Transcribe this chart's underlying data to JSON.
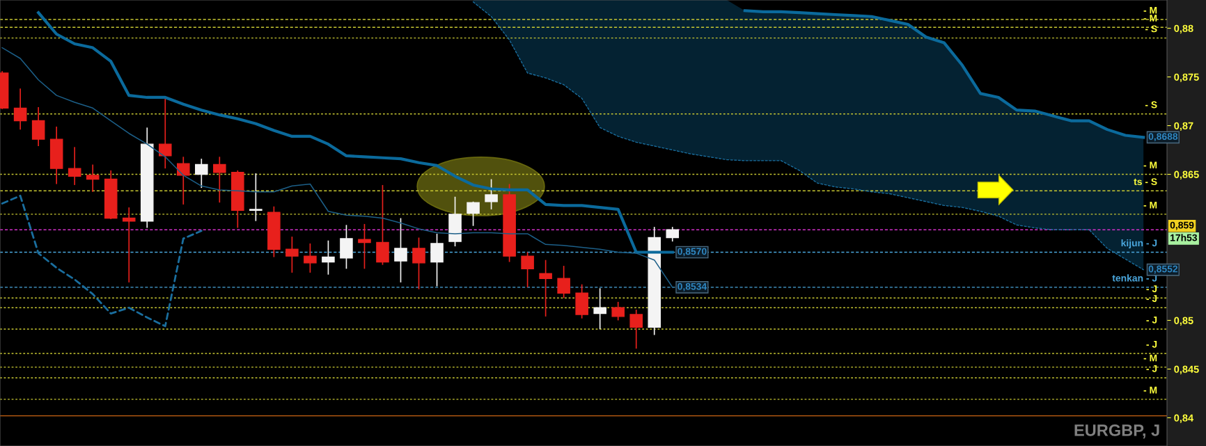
{
  "chart_data": {
    "type": "candlestick",
    "title": "EURGBP, J",
    "categories": [
      null,
      null,
      null,
      null,
      null,
      null,
      null,
      null,
      null,
      null,
      null,
      null,
      null,
      null,
      null,
      null,
      null,
      null,
      null,
      null,
      null,
      null,
      null,
      null,
      null,
      null,
      null,
      null,
      null,
      null,
      null,
      null,
      null,
      null,
      null,
      null,
      null,
      null,
      null,
      null,
      null,
      null,
      null,
      null,
      null,
      null,
      null,
      null,
      null,
      null,
      null,
      null,
      null,
      null,
      null,
      null,
      null,
      null,
      null,
      null,
      null,
      null,
      null,
      null
    ],
    "ylim": [
      0.8371,
      0.8829
    ],
    "yticks": [
      {
        "value": 0.84,
        "label": "0,84"
      },
      {
        "value": 0.845,
        "label": "0,845"
      },
      {
        "value": 0.85,
        "label": "0,85"
      },
      {
        "value": 0.865,
        "label": "0,865"
      },
      {
        "value": 0.87,
        "label": "0,87"
      },
      {
        "value": 0.875,
        "label": "0,875"
      },
      {
        "value": 0.88,
        "label": "0,88"
      }
    ],
    "tick_labels": "y",
    "grid": false,
    "legend": false,
    "series": [
      {
        "ohlc": [
          [
            0.8754,
            0.8756,
            0.8717,
            0.8718
          ],
          [
            0.8718,
            0.8738,
            0.8696,
            0.8705
          ],
          [
            0.8705,
            0.8719,
            0.8679,
            0.8686
          ],
          [
            0.8686,
            0.8699,
            0.864,
            0.8656
          ],
          [
            0.8656,
            0.8678,
            0.8639,
            0.8648
          ],
          [
            0.8649,
            0.866,
            0.8632,
            0.8645
          ],
          [
            0.8645,
            0.8654,
            0.8604,
            0.8605
          ],
          [
            0.8605,
            0.8616,
            0.8539,
            0.8602
          ],
          [
            0.8602,
            0.8698,
            0.8595,
            0.8681
          ],
          [
            0.8681,
            0.8729,
            0.8656,
            0.8669
          ],
          [
            0.8661,
            0.8668,
            0.8619,
            0.8649
          ],
          [
            0.865,
            0.8666,
            0.8636,
            0.866
          ],
          [
            0.866,
            0.8668,
            0.8621,
            0.8652
          ],
          [
            0.8652,
            0.8654,
            0.8595,
            0.8613
          ],
          [
            0.8613,
            0.8651,
            0.8602,
            0.8614
          ],
          [
            0.8611,
            0.8617,
            0.8565,
            0.8573
          ],
          [
            0.8573,
            0.8586,
            0.8549,
            0.8566
          ],
          [
            0.8566,
            0.8579,
            0.8549,
            0.8559
          ],
          [
            0.856,
            0.8582,
            0.8547,
            0.8565
          ],
          [
            0.8564,
            0.8598,
            0.8553,
            0.8584
          ],
          [
            0.8583,
            0.8599,
            0.8553,
            0.858
          ],
          [
            0.858,
            0.8639,
            0.8557,
            0.856
          ],
          [
            0.8561,
            0.8605,
            0.8539,
            0.8574
          ],
          [
            0.8574,
            0.8585,
            0.8532,
            0.8559
          ],
          [
            0.856,
            0.8589,
            0.8535,
            0.8579
          ],
          [
            0.8581,
            0.8627,
            0.8576,
            0.8609
          ],
          [
            0.861,
            0.8622,
            0.8597,
            0.8621
          ],
          [
            0.8622,
            0.8645,
            0.8614,
            0.8629
          ],
          [
            0.8629,
            0.864,
            0.856,
            0.8566
          ],
          [
            0.8566,
            0.857,
            0.8534,
            0.8553
          ],
          [
            0.8548,
            0.8562,
            0.8504,
            0.8543
          ],
          [
            0.8543,
            0.8556,
            0.8523,
            0.8528
          ],
          [
            0.8528,
            0.8537,
            0.8502,
            0.8506
          ],
          [
            0.8507,
            0.8533,
            0.8491,
            0.8513
          ],
          [
            0.8513,
            0.8519,
            0.85,
            0.8504
          ],
          [
            0.8506,
            0.8511,
            0.8471,
            0.8493
          ],
          [
            0.8493,
            0.8596,
            0.8485,
            0.8585
          ],
          [
            0.8585,
            0.8596,
            0.8581,
            0.8593
          ],
          null,
          null,
          null,
          null,
          null,
          null,
          null,
          null,
          null,
          null,
          null,
          null,
          null,
          null,
          null,
          null,
          null,
          null,
          null,
          null,
          null,
          null,
          null,
          null,
          null,
          null
        ],
        "colors": [
          "#e8201c",
          "#e8201c",
          "#e8201c",
          "#e8201c",
          "#e8201c",
          "#e8201c",
          "#e8201c",
          "#e8201c",
          "#f4f4f4",
          "#e8201c",
          "#e8201c",
          "#f4f4f4",
          "#e8201c",
          "#e8201c",
          "#f4f4f4",
          "#e8201c",
          "#e8201c",
          "#e8201c",
          "#f4f4f4",
          "#f4f4f4",
          "#e8201c",
          "#e8201c",
          "#f4f4f4",
          "#e8201c",
          "#f4f4f4",
          "#f4f4f4",
          "#f4f4f4",
          "#f4f4f4",
          "#e8201c",
          "#e8201c",
          "#e8201c",
          "#e8201c",
          "#e8201c",
          "#f4f4f4",
          "#e8201c",
          "#e8201c",
          "#f4f4f4",
          "#f4f4f4",
          null,
          null,
          null,
          null,
          null,
          null,
          null,
          null,
          null,
          null,
          null,
          null,
          null,
          null,
          null,
          null,
          null,
          null,
          null,
          null,
          null,
          null,
          null,
          null,
          null,
          null
        ],
        "value_labels": [
          null,
          null,
          null,
          null,
          null,
          null,
          null,
          null,
          null,
          null,
          null,
          null,
          null,
          null,
          null,
          null,
          null,
          null,
          null,
          null,
          null,
          null,
          null,
          null,
          null,
          null,
          null,
          null,
          null,
          null,
          null,
          null,
          null,
          null,
          null,
          null,
          null,
          "0,859",
          null,
          null,
          null,
          null,
          null,
          null,
          null,
          null,
          null,
          null,
          null,
          null,
          null,
          null,
          null,
          null,
          null,
          null,
          null,
          null,
          null,
          null,
          null,
          null,
          null,
          null
        ]
      },
      {
        "type": "line",
        "color": "#0b6a9c",
        "line_style": "solid",
        "values": [
          null,
          null,
          0.8816,
          0.8794,
          0.8784,
          0.878,
          0.8766,
          0.8731,
          0.8729,
          0.8729,
          0.8722,
          0.8716,
          0.8711,
          0.8707,
          0.8702,
          0.8695,
          0.8689,
          0.8689,
          0.8681,
          0.8669,
          0.8668,
          0.8667,
          0.8666,
          0.8662,
          0.8659,
          0.8648,
          0.8639,
          0.8635,
          0.8634,
          0.8634,
          0.8619,
          0.8618,
          0.8618,
          0.8616,
          0.8614,
          0.857,
          0.857,
          0.857,
          null,
          null,
          null,
          null,
          null,
          null,
          null,
          null,
          null,
          null,
          null,
          null,
          null,
          null,
          null,
          null,
          null,
          null,
          null,
          null,
          null,
          null,
          null,
          null,
          null,
          null
        ],
        "value_labels": [
          null,
          null,
          null,
          null,
          null,
          null,
          null,
          null,
          null,
          null,
          null,
          null,
          null,
          null,
          null,
          null,
          null,
          null,
          null,
          null,
          null,
          null,
          null,
          null,
          null,
          null,
          null,
          null,
          null,
          null,
          null,
          null,
          null,
          null,
          null,
          null,
          null,
          "0,8570",
          null,
          null,
          null,
          null,
          null,
          null,
          null,
          null,
          null,
          null,
          null,
          null,
          null,
          null,
          null,
          null,
          null,
          null,
          null,
          null,
          null,
          null,
          null,
          null,
          null,
          null
        ]
      },
      {
        "type": "line",
        "color": "#1c5f88",
        "line_style": "solid",
        "values": [
          0.878,
          0.8769,
          0.8747,
          0.8731,
          0.8724,
          0.8718,
          0.8705,
          0.8692,
          0.8681,
          0.8668,
          0.8649,
          0.8638,
          0.8634,
          0.8633,
          0.8632,
          0.8632,
          0.8638,
          0.864,
          0.8612,
          0.8608,
          0.8607,
          0.8605,
          0.86,
          0.8594,
          0.859,
          0.8589,
          0.859,
          0.859,
          0.8589,
          0.8589,
          0.8578,
          0.8577,
          0.8575,
          0.8573,
          0.857,
          0.8569,
          0.8562,
          0.8534,
          null,
          null,
          null,
          null,
          null,
          null,
          null,
          null,
          null,
          null,
          null,
          null,
          null,
          null,
          null,
          null,
          null,
          null,
          null,
          null,
          null,
          null,
          null,
          null,
          null,
          null
        ],
        "value_labels": [
          null,
          null,
          null,
          null,
          null,
          null,
          null,
          null,
          null,
          null,
          null,
          null,
          null,
          null,
          null,
          null,
          null,
          null,
          null,
          null,
          null,
          null,
          null,
          null,
          null,
          null,
          null,
          null,
          null,
          null,
          null,
          null,
          null,
          null,
          null,
          null,
          null,
          "0,8534",
          null,
          null,
          null,
          null,
          null,
          null,
          null,
          null,
          null,
          null,
          null,
          null,
          null,
          null,
          null,
          null,
          null,
          null,
          null,
          null,
          null,
          null,
          null,
          null,
          null,
          null
        ]
      },
      {
        "type": "line",
        "color": "#1a6e9e",
        "line_style": "dashed",
        "values": [
          0.862,
          0.8628,
          0.8569,
          0.8554,
          0.8542,
          0.8527,
          0.8507,
          0.8513,
          0.8503,
          0.8494,
          0.8584,
          0.8592,
          null,
          null,
          null,
          null,
          null,
          null,
          null,
          null,
          null,
          null,
          null,
          null,
          null,
          null,
          null,
          null,
          null,
          null,
          null,
          null,
          null,
          null,
          null,
          null,
          null,
          null,
          null,
          null,
          null,
          null,
          null,
          null,
          null,
          null,
          null,
          null,
          null,
          null,
          null,
          null,
          null,
          null,
          null,
          null,
          null,
          null,
          null,
          null,
          null,
          null,
          null,
          null
        ]
      },
      {
        "type": "line",
        "color": "#1a6e9e",
        "line_style": "dotted",
        "values": [
          null,
          null,
          null,
          null,
          null,
          null,
          null,
          null,
          null,
          null,
          null,
          null,
          null,
          null,
          null,
          null,
          null,
          null,
          null,
          null,
          null,
          null,
          null,
          null,
          null,
          null,
          0.8827,
          0.8812,
          0.8788,
          0.8754,
          0.8749,
          0.8742,
          0.8728,
          0.8698,
          0.8689,
          0.8683,
          0.8679,
          0.8675,
          0.8671,
          0.8668,
          0.8665,
          0.8664,
          0.8664,
          0.8664,
          0.8654,
          0.8641,
          0.8637,
          0.8635,
          0.8632,
          0.863,
          0.8626,
          0.8622,
          0.8618,
          0.8616,
          0.8612,
          0.8607,
          0.8598,
          0.8595,
          0.8593,
          0.8593,
          0.8593,
          0.8574,
          0.8563,
          0.8552
        ],
        "value_labels": [
          null,
          null,
          null,
          null,
          null,
          null,
          null,
          null,
          null,
          null,
          null,
          null,
          null,
          null,
          null,
          null,
          null,
          null,
          null,
          null,
          null,
          null,
          null,
          null,
          null,
          null,
          null,
          null,
          null,
          null,
          null,
          null,
          null,
          null,
          null,
          null,
          null,
          null,
          null,
          null,
          null,
          null,
          null,
          null,
          null,
          null,
          null,
          null,
          null,
          null,
          null,
          null,
          null,
          null,
          null,
          null,
          null,
          null,
          null,
          null,
          null,
          null,
          null,
          "0,8552"
        ]
      },
      {
        "type": "line",
        "color": "#0b6a9c",
        "line_style": "solid",
        "values": [
          null,
          null,
          null,
          null,
          null,
          null,
          null,
          null,
          null,
          null,
          null,
          null,
          null,
          null,
          null,
          null,
          null,
          null,
          null,
          null,
          null,
          null,
          null,
          null,
          null,
          null,
          null,
          null,
          null,
          null,
          null,
          null,
          null,
          null,
          null,
          null,
          null,
          null,
          null,
          null,
          null,
          0.8818,
          0.8817,
          0.8817,
          0.8816,
          0.8815,
          0.8814,
          0.8813,
          0.8812,
          0.8808,
          0.8804,
          0.8791,
          0.8785,
          0.8762,
          0.8733,
          0.8729,
          0.8716,
          0.8715,
          0.871,
          0.8705,
          0.8705,
          0.8696,
          0.869,
          0.8688
        ],
        "value_labels": [
          null,
          null,
          null,
          null,
          null,
          null,
          null,
          null,
          null,
          null,
          null,
          null,
          null,
          null,
          null,
          null,
          null,
          null,
          null,
          null,
          null,
          null,
          null,
          null,
          null,
          null,
          null,
          null,
          null,
          null,
          null,
          null,
          null,
          null,
          null,
          null,
          null,
          null,
          null,
          null,
          null,
          null,
          null,
          null,
          null,
          null,
          null,
          null,
          null,
          null,
          null,
          null,
          null,
          null,
          null,
          null,
          null,
          null,
          null,
          null,
          null,
          null,
          null,
          "0,8688"
        ],
        "lower": [
          null,
          null,
          null,
          null,
          null,
          null,
          null,
          null,
          null,
          null,
          null,
          null,
          null,
          null,
          null,
          null,
          null,
          null,
          null,
          null,
          null,
          null,
          null,
          null,
          null,
          null,
          0.8827,
          0.8812,
          0.8788,
          0.8754,
          0.8749,
          0.8742,
          0.8728,
          0.8698,
          0.8689,
          0.8683,
          0.8679,
          0.8675,
          0.8671,
          0.8668,
          0.8665,
          0.8664,
          0.8664,
          0.8664,
          0.8654,
          0.8641,
          0.8637,
          0.8635,
          0.8632,
          0.863,
          0.8626,
          0.8622,
          0.8618,
          0.8616,
          0.8612,
          0.8607,
          0.8598,
          0.8595,
          0.8593,
          0.8593,
          0.8593,
          0.8574,
          0.8563,
          0.8552
        ],
        "upper": [
          null,
          null,
          null,
          null,
          null,
          null,
          null,
          null,
          null,
          null,
          null,
          null,
          null,
          null,
          null,
          null,
          null,
          null,
          null,
          null,
          null,
          null,
          null,
          null,
          null,
          null,
          0.8829,
          0.8829,
          0.8829,
          0.8829,
          0.8829,
          0.8829,
          0.8829,
          0.8829,
          0.8829,
          0.8829,
          0.8829,
          0.8829,
          0.8829,
          0.8829,
          0.8829,
          0.8818,
          0.8817,
          0.8817,
          0.8816,
          0.8815,
          0.8814,
          0.8813,
          0.8812,
          0.8808,
          0.8804,
          0.8791,
          0.8785,
          0.8762,
          0.8733,
          0.8729,
          0.8716,
          0.8715,
          0.871,
          0.8705,
          0.8705,
          0.8696,
          0.869,
          0.8688
        ]
      }
    ],
    "ref_lines": [
      {
        "axis": "y",
        "value": 0.8809,
        "label": "- M",
        "color": "#c8c832",
        "line_style": "dashed"
      },
      {
        "axis": "y",
        "value": 0.8801,
        "label": "- M",
        "color": "#c8c832",
        "line_style": "dashed"
      },
      {
        "axis": "y",
        "value": 0.879,
        "label": "- S",
        "color": "#c8c832",
        "line_style": "dotted"
      },
      {
        "axis": "y",
        "value": 0.8712,
        "label": "- S",
        "color": "#c8c832",
        "line_style": "dotted"
      },
      {
        "axis": "y",
        "value": 0.865,
        "label": "- M",
        "color": "#c8c832",
        "line_style": "dotted"
      },
      {
        "axis": "y",
        "value": 0.8633,
        "label": "ts - S",
        "color": "#c8c832",
        "line_style": "dashed"
      },
      {
        "axis": "y",
        "value": 0.8609,
        "label": "- M",
        "color": "#c8c832",
        "line_style": "dotted"
      },
      {
        "axis": "y",
        "value": 0.8593,
        "color": "#d030c8",
        "line_style": "dashed"
      },
      {
        "axis": "y",
        "value": 0.857,
        "label": "kijun - J",
        "color": "#4aa6dc",
        "line_style": "dashed"
      },
      {
        "axis": "y",
        "value": 0.8534,
        "label": "tenkan - J",
        "color": "#4aa6dc",
        "line_style": "dashed"
      },
      {
        "axis": "y",
        "value": 0.8523,
        "label": "- J",
        "color": "#c8c832",
        "line_style": "dotted"
      },
      {
        "axis": "y",
        "value": 0.8513,
        "label": "- J",
        "color": "#c8c832",
        "line_style": "dotted"
      },
      {
        "axis": "y",
        "value": 0.8491,
        "label": "- J",
        "color": "#c8c832",
        "line_style": "dotted"
      },
      {
        "axis": "y",
        "value": 0.8466,
        "label": "- J",
        "color": "#c8c832",
        "line_style": "dotted"
      },
      {
        "axis": "y",
        "value": 0.8452,
        "label": "- M",
        "color": "#c8c832",
        "line_style": "dotted"
      },
      {
        "axis": "y",
        "value": 0.8441,
        "label": "- J",
        "color": "#c8c832",
        "line_style": "dotted"
      },
      {
        "axis": "y",
        "value": 0.8419,
        "label": "- M",
        "color": "#c8c832",
        "line_style": "dotted"
      },
      {
        "axis": "y",
        "value": 0.8402,
        "color": "#c86414",
        "line_style": "solid"
      }
    ],
    "annotations": [
      "17h53"
    ]
  }
}
